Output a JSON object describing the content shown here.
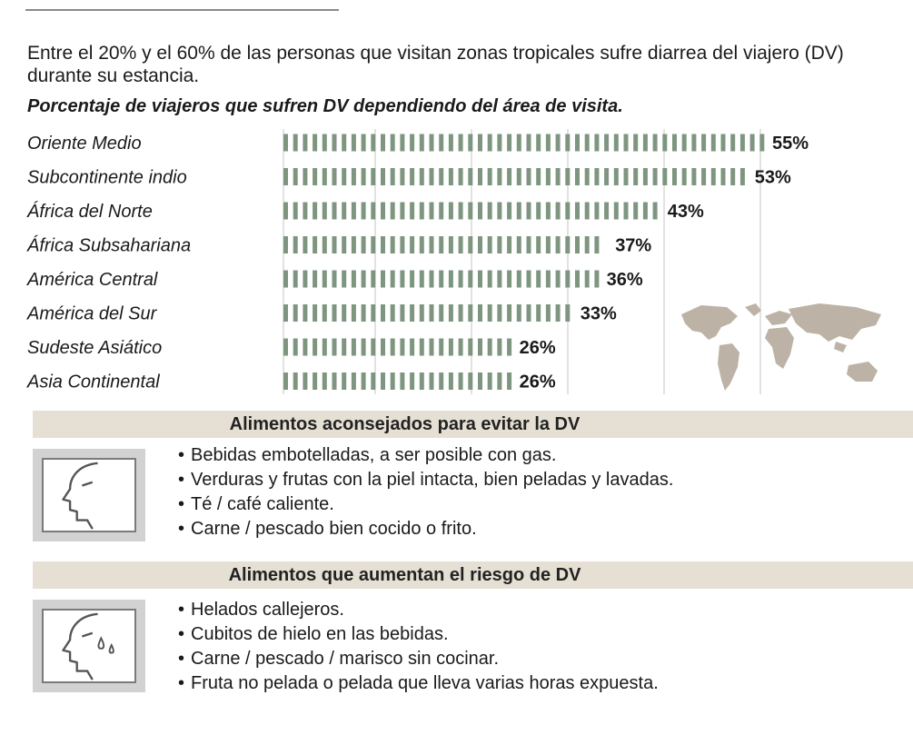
{
  "intro": "Entre el 20% y el 60% de las personas que visitan zonas tropicales sufre diarrea del viajero (DV) durante su estancia.",
  "chart_data": {
    "type": "bar",
    "orientation": "horizontal",
    "title": "Porcentaje de viajeros que sufren DV dependiendo del área de visita.",
    "categories": [
      "Oriente Medio",
      "Subcontinente indio",
      "África del Norte",
      "África Subsahariana",
      "América Central",
      "América del Sur",
      "Sudeste Asiático",
      "Asia Continental"
    ],
    "values": [
      55,
      53,
      43,
      37,
      36,
      33,
      26,
      26
    ],
    "value_labels": [
      "55%",
      "53%",
      "43%",
      "37%",
      "36%",
      "33%",
      "26%",
      "26%"
    ],
    "unit": "%",
    "bar_color": "#7e9680",
    "grid_color": "#c4c4c4",
    "grid": true,
    "xlim": [
      0,
      70
    ]
  },
  "sections": [
    {
      "title": "Alimentos aconsejados para evitar la DV",
      "icon": "face-profile-icon",
      "items": [
        "Bebidas embotelladas, a ser posible con gas.",
        "Verduras y frutas con la piel intacta, bien peladas y lavadas.",
        "Té / café caliente.",
        "Carne / pescado bien cocido o frito."
      ]
    },
    {
      "title": "Alimentos que aumentan el riesgo de DV",
      "icon": "sweating-face-profile-icon",
      "items": [
        "Helados callejeros.",
        "Cubitos de hielo en las bebidas.",
        "Carne / pescado / marisco sin cocinar.",
        "Fruta no pelada o pelada que lleva varias horas expuesta."
      ]
    }
  ],
  "bullet": "•",
  "colors": {
    "band": "#e6e0d4",
    "map": "#bdb2a6",
    "icon_frame": "#d2d2d2"
  }
}
